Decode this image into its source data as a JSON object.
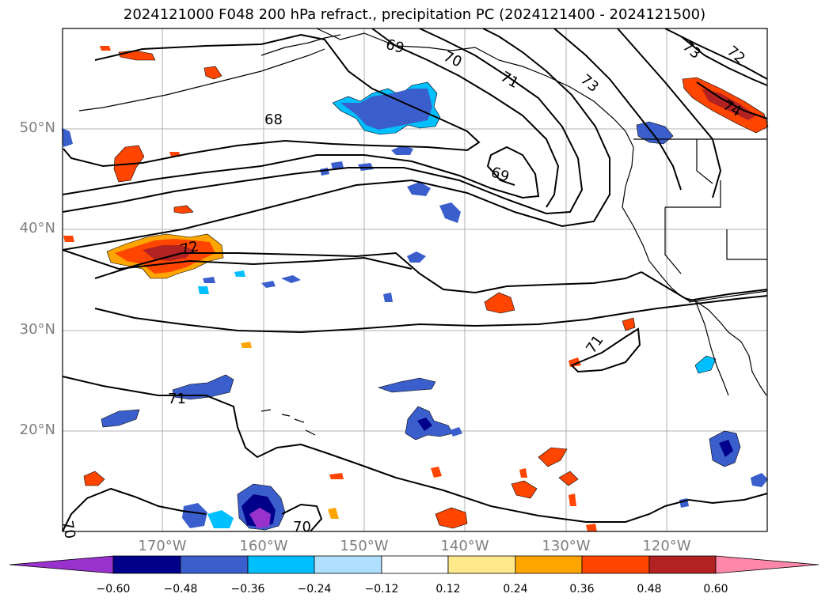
{
  "title": "2024121000 F048 200 hPa refract., precipitation PC (2024121400 - 2024121500)",
  "map": {
    "latitude_labels": [
      "50°N",
      "40°N",
      "30°N",
      "20°N"
    ],
    "longitude_labels": [
      "170°W",
      "160°W",
      "150°W",
      "140°W",
      "130°W",
      "120°W"
    ],
    "contour_labels": [
      "69",
      "70",
      "71",
      "73",
      "73",
      "72",
      "74",
      "68",
      "69",
      "72",
      "71",
      "71",
      "70",
      "70"
    ],
    "colors": {
      "contour": "#000000",
      "coastline": "#000000",
      "grid": "#b0b0b0"
    }
  },
  "colorbar": {
    "tick_labels": [
      "−0.60",
      "−0.48",
      "−0.36",
      "−0.24",
      "−0.12",
      "0.12",
      "0.24",
      "0.36",
      "0.48",
      "0.60"
    ],
    "bin_colors": [
      "#9932cc",
      "#00008b",
      "#3a5fcd",
      "#00bfff",
      "#b0e0ff",
      "#ffffff",
      "#ffe88a",
      "#ffa500",
      "#ff4500",
      "#b22222",
      "#ff88aa"
    ]
  }
}
